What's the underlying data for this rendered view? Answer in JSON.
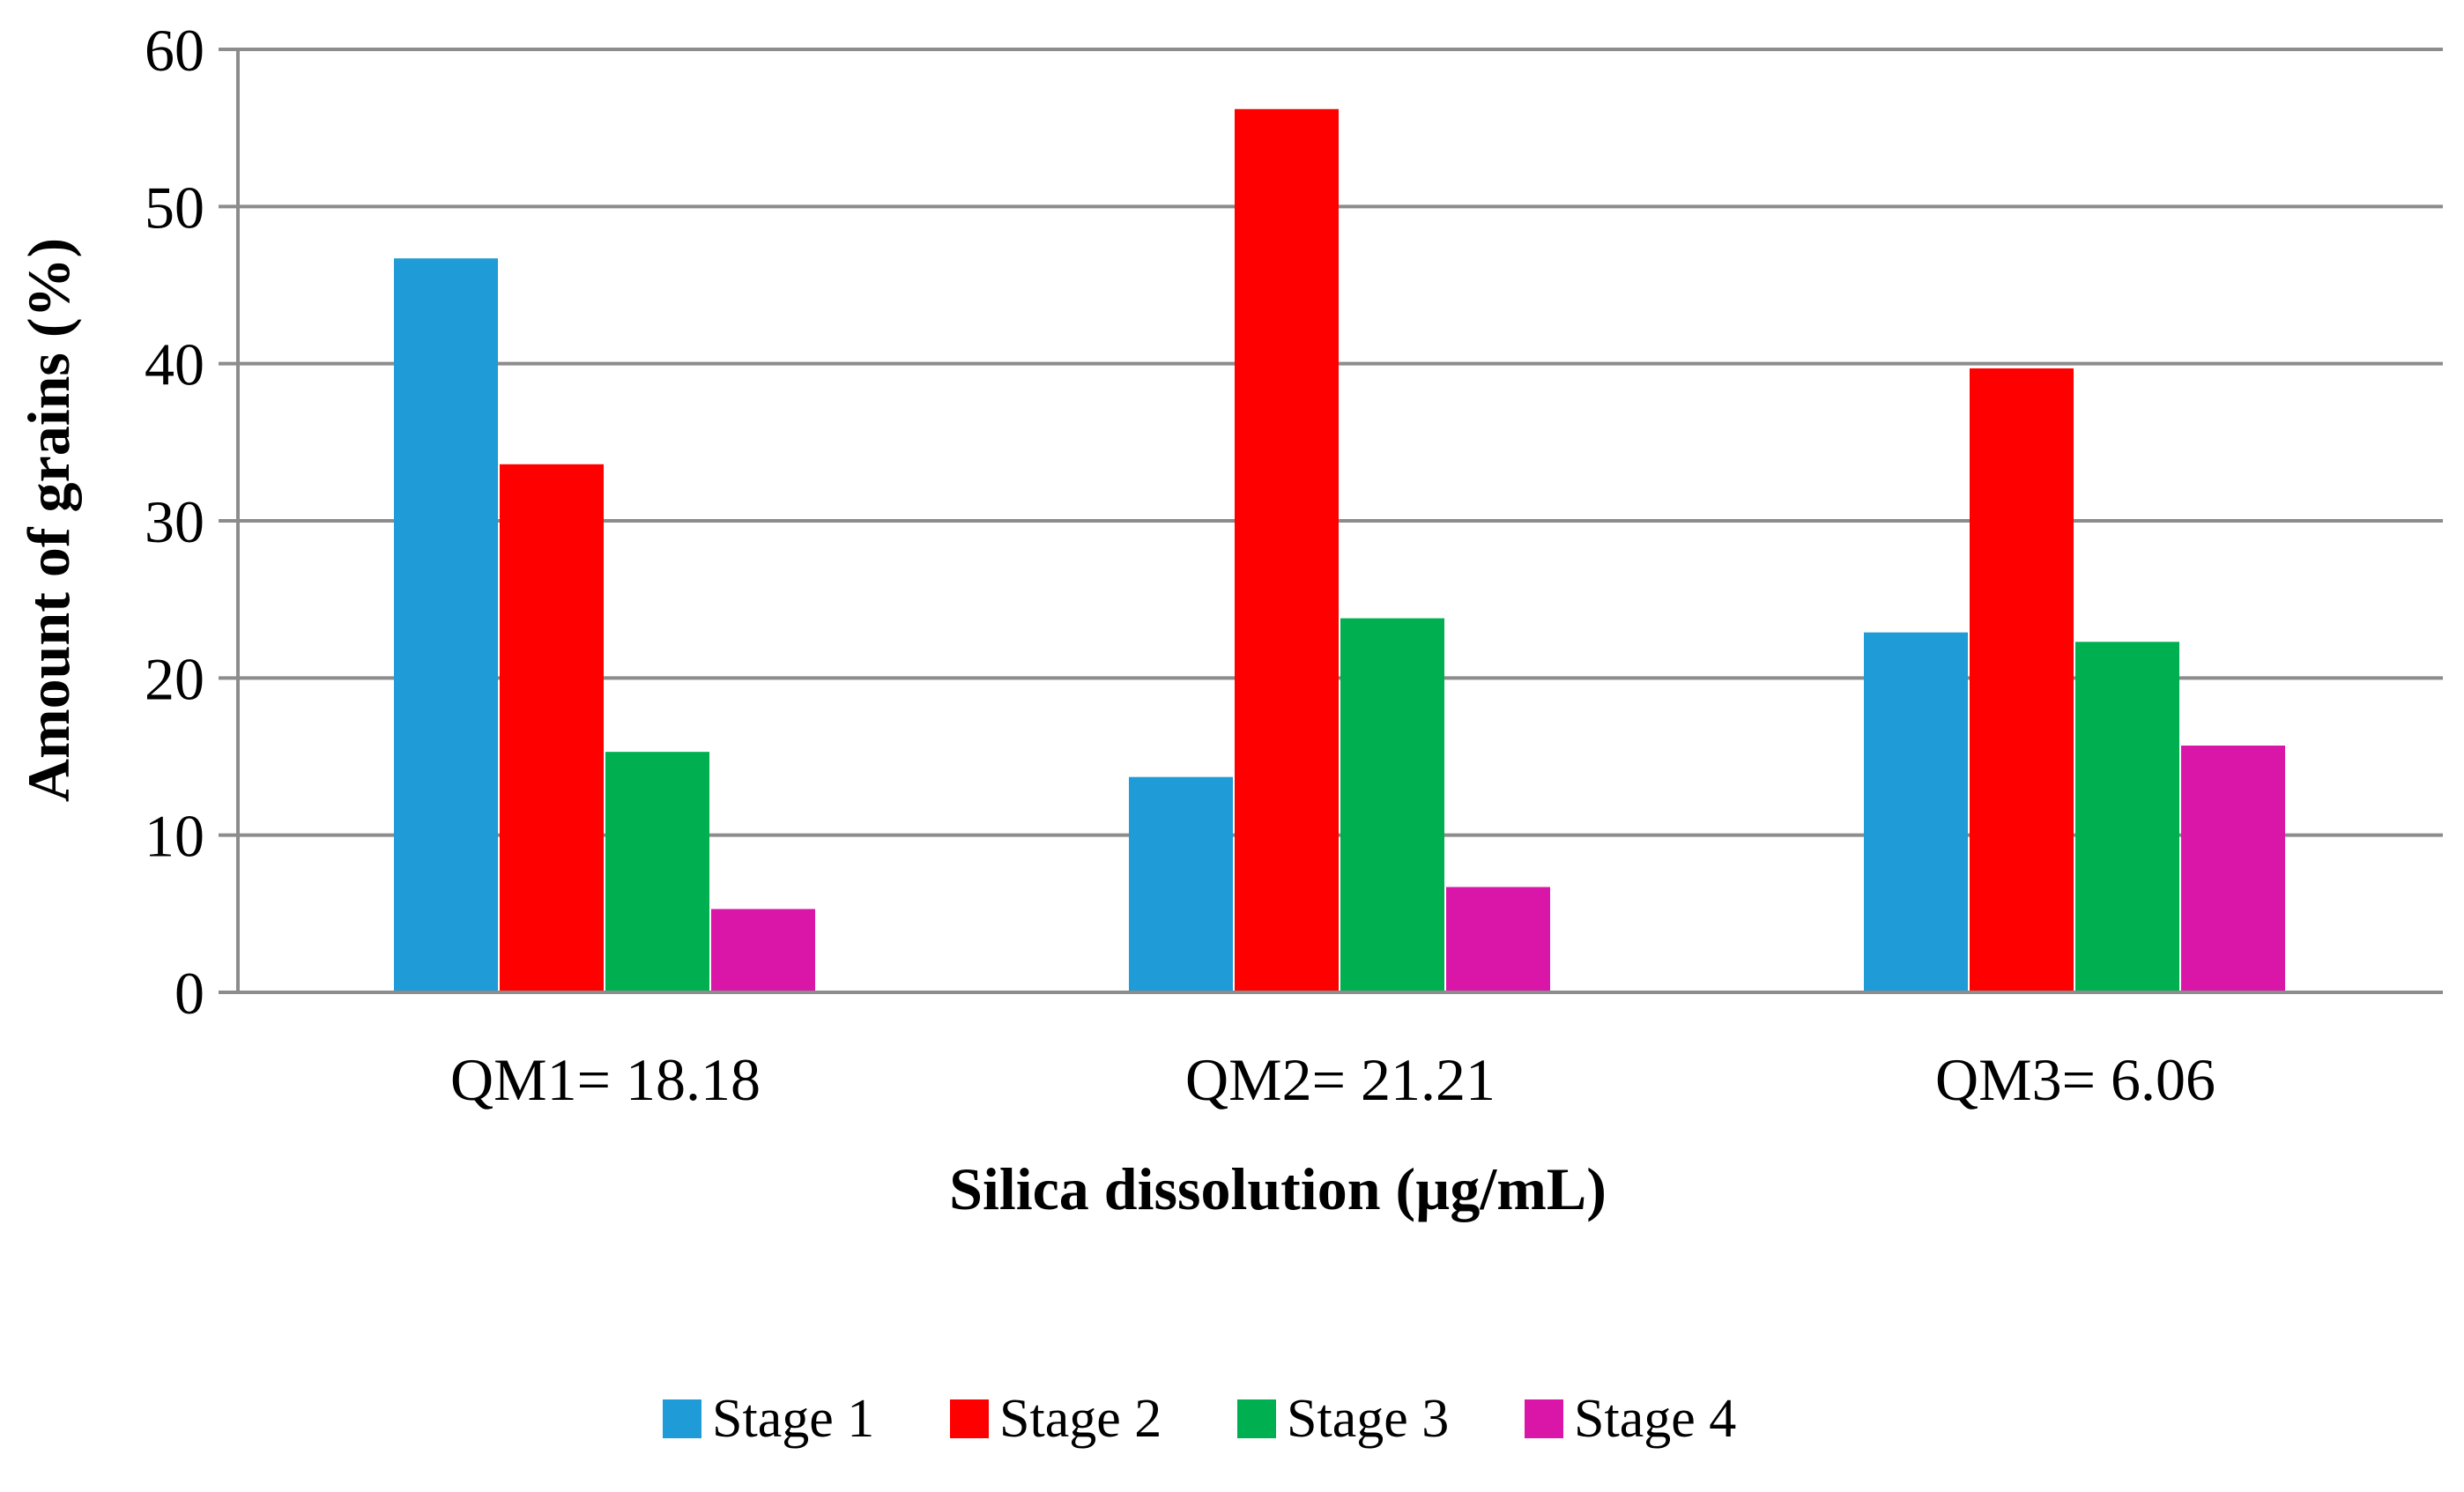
{
  "chart_data": {
    "type": "bar",
    "title": "",
    "xlabel": "Silica dissolution (µg/mL)",
    "ylabel": "Amount of grains (%)",
    "ylim": [
      0,
      60
    ],
    "yticks": [
      0,
      10,
      20,
      30,
      40,
      50,
      60
    ],
    "grid": true,
    "legend_position": "bottom",
    "categories": [
      "QM1= 18.18",
      "QM2= 21.21",
      "QM3= 6.06"
    ],
    "series": [
      {
        "name": "Stage 1",
        "color": "#1f9bd7",
        "values": [
          46.7,
          13.7,
          22.9
        ]
      },
      {
        "name": "Stage 2",
        "color": "#ff0000",
        "values": [
          33.6,
          56.2,
          39.7
        ]
      },
      {
        "name": "Stage 3",
        "color": "#00b050",
        "values": [
          15.3,
          23.8,
          22.3
        ]
      },
      {
        "name": "Stage 4",
        "color": "#d916a8",
        "values": [
          5.3,
          6.7,
          15.7
        ]
      }
    ]
  }
}
